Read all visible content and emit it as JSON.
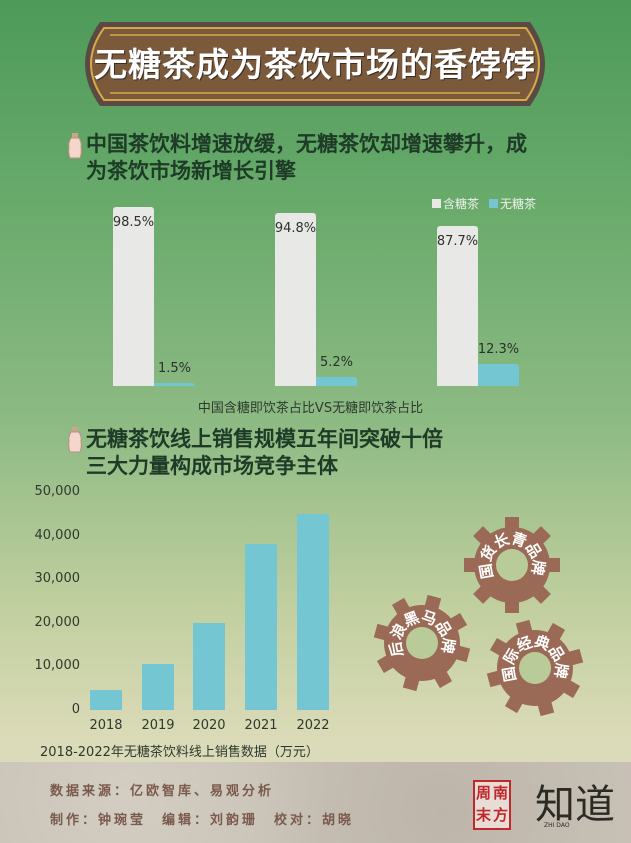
{
  "title": "无糖茶成为茶饮市场的香饽饽",
  "section1": {
    "heading_line1": "中国茶饮料增速放缓，无糖茶饮却增速攀升，成",
    "heading_line2": "为茶饮市场新增长引擎"
  },
  "section2": {
    "heading_line1": "无糖茶饮线上销售规模五年间突破十倍",
    "heading_line2": "三大力量构成市场竞争主体"
  },
  "gears": [
    {
      "label": "国货长青品牌"
    },
    {
      "label": "后浪黑马品牌"
    },
    {
      "label": "国际经典品牌"
    }
  ],
  "footer": {
    "source": "数据来源：亿欧智库、易观分析",
    "credits": "制作：钟琬莹　编辑：刘韵珊　校对：胡晓",
    "logo_stamp": "南方周末",
    "logo_zhidao": "知道",
    "logo_zhidao_pinyin": "ZHI DAO"
  },
  "colors": {
    "sugar": "#e8e9e6",
    "nosugar": "#74c6d2",
    "banner": "#7b5a3b",
    "gear": "#9b6a56"
  },
  "chart_data": [
    {
      "type": "bar",
      "title": "",
      "xlabel": "中国含糖即饮茶占比VS无糖即饮茶占比",
      "ylabel": "",
      "ylim": [
        0,
        100
      ],
      "categories": [
        "",
        "",
        ""
      ],
      "legend": "top-right",
      "series": [
        {
          "name": "含糖茶",
          "values": [
            98.5,
            94.8,
            87.7
          ],
          "labels": [
            "98.5%",
            "94.8%",
            "87.7%"
          ]
        },
        {
          "name": "无糖茶",
          "values": [
            1.5,
            5.2,
            12.3
          ],
          "labels": [
            "1.5%",
            "5.2%",
            "12.3%"
          ]
        }
      ]
    },
    {
      "type": "bar",
      "title": "",
      "xlabel": "2018-2022年无糖茶饮料线上销售数据（万元）",
      "ylabel": "",
      "ylim": [
        0,
        50000
      ],
      "yticks": [
        "0",
        "10,000",
        "20,000",
        "30,000",
        "40,000",
        "50,000"
      ],
      "categories": [
        "2018",
        "2019",
        "2020",
        "2021",
        "2022"
      ],
      "values": [
        4700,
        10600,
        19900,
        38100,
        45000
      ]
    }
  ]
}
